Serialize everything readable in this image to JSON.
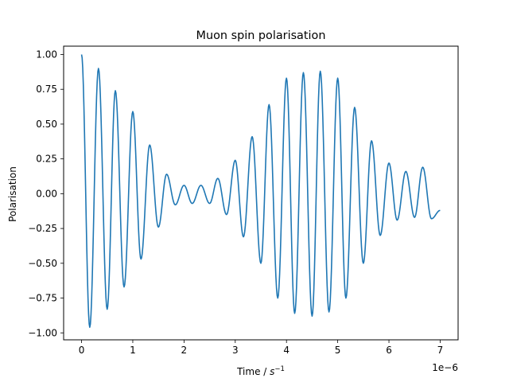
{
  "chart_data": {
    "type": "line",
    "title": "Muon spin polarisation",
    "xlabel": "Time / ",
    "xlabel_math": "s",
    "xlabel_exponent": "−1",
    "ylabel": "Polarisation",
    "x_offset_label": "1e−6",
    "xlim": [
      -0.35,
      7.35
    ],
    "ylim": [
      -1.05,
      1.06
    ],
    "x_ticks": [
      0,
      1,
      2,
      3,
      4,
      5,
      6,
      7
    ],
    "x_tick_labels": [
      "0",
      "1",
      "2",
      "3",
      "4",
      "5",
      "6",
      "7"
    ],
    "y_ticks": [
      1.0,
      0.75,
      0.5,
      0.25,
      0.0,
      -0.25,
      -0.5,
      -0.75,
      -1.0
    ],
    "y_tick_labels": [
      "1.00",
      "0.75",
      "0.50",
      "0.25",
      "0.00",
      "−0.25",
      "−0.50",
      "−0.75",
      "−1.00"
    ],
    "grid": false,
    "series": [
      {
        "name": "Polarisation",
        "color": "#1f77b4",
        "x_scale": "1e-6",
        "x": [
          0,
          0.16,
          0.33,
          0.5,
          0.66,
          0.83,
          1.0,
          1.16,
          1.33,
          1.5,
          1.66,
          1.83,
          2.0,
          2.16,
          2.33,
          2.5,
          2.66,
          2.83,
          3.0,
          3.16,
          3.33,
          3.5,
          3.66,
          3.83,
          4.0,
          4.16,
          4.33,
          4.5,
          4.66,
          4.83,
          5.0,
          5.16,
          5.33,
          5.5,
          5.66,
          5.83,
          6.0,
          6.16,
          6.33,
          6.5,
          6.66,
          6.83,
          7.0
        ],
        "y": [
          1.0,
          -0.96,
          0.9,
          -0.83,
          0.74,
          -0.67,
          0.59,
          -0.47,
          0.35,
          -0.24,
          0.14,
          -0.08,
          0.06,
          -0.07,
          0.06,
          -0.07,
          0.11,
          -0.15,
          0.24,
          -0.31,
          0.41,
          -0.5,
          0.64,
          -0.75,
          0.83,
          -0.86,
          0.87,
          -0.88,
          0.88,
          -0.85,
          0.83,
          -0.75,
          0.62,
          -0.5,
          0.38,
          -0.3,
          0.22,
          -0.19,
          0.16,
          -0.17,
          0.19,
          -0.18,
          -0.12
        ]
      }
    ]
  }
}
